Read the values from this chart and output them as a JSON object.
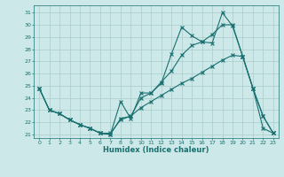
{
  "xlabel": "Humidex (Indice chaleur)",
  "bg_color": "#cce8e8",
  "grid_color": "#aacccc",
  "line_color": "#1a7070",
  "xlim": [
    -0.5,
    23.5
  ],
  "ylim": [
    20.7,
    31.6
  ],
  "yticks": [
    21,
    22,
    23,
    24,
    25,
    26,
    27,
    28,
    29,
    30,
    31
  ],
  "xticks": [
    0,
    1,
    2,
    3,
    4,
    5,
    6,
    7,
    8,
    9,
    10,
    11,
    12,
    13,
    14,
    15,
    16,
    17,
    18,
    19,
    20,
    21,
    22,
    23
  ],
  "line1_y": [
    24.8,
    23.0,
    22.7,
    22.2,
    21.8,
    21.5,
    21.1,
    21.0,
    23.7,
    22.3,
    24.4,
    24.4,
    25.2,
    27.6,
    29.8,
    29.1,
    28.6,
    28.5,
    31.0,
    29.9,
    27.4,
    24.8,
    22.5,
    21.1
  ],
  "line2_y": [
    24.8,
    23.0,
    22.7,
    22.2,
    21.8,
    21.5,
    21.1,
    21.0,
    22.3,
    22.5,
    24.0,
    24.4,
    25.3,
    26.2,
    27.5,
    28.3,
    28.6,
    29.2,
    30.0,
    30.0,
    27.4,
    24.8,
    22.5,
    21.1
  ],
  "line3_y": [
    24.8,
    23.0,
    22.7,
    22.2,
    21.8,
    21.5,
    21.1,
    21.1,
    22.2,
    22.5,
    23.2,
    23.7,
    24.2,
    24.7,
    25.2,
    25.6,
    26.1,
    26.6,
    27.1,
    27.5,
    27.4,
    24.8,
    21.5,
    21.1
  ]
}
